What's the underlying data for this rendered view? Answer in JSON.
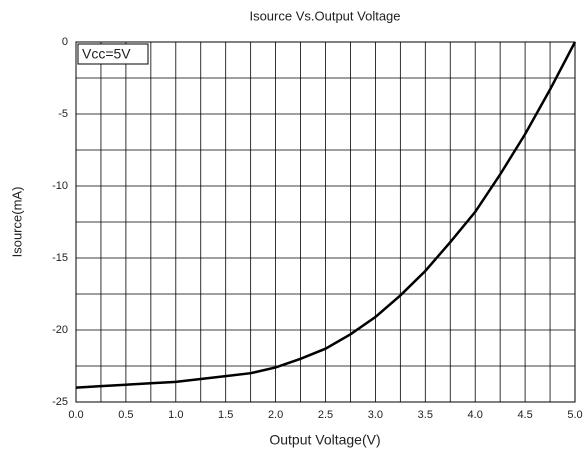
{
  "chart_data": {
    "type": "line",
    "title": "Isource Vs.Output Voltage",
    "xlabel": "Output Voltage(V)",
    "ylabel": "Isource(mA)",
    "annotation": "Vcc=5V",
    "x": [
      0,
      0.25,
      0.5,
      0.75,
      1.0,
      1.25,
      1.5,
      1.75,
      2.0,
      2.25,
      2.5,
      2.75,
      3.0,
      3.25,
      3.5,
      3.75,
      4.0,
      4.25,
      4.5,
      4.75,
      5.0
    ],
    "series": [
      {
        "color": "#000000",
        "values": [
          -24,
          -23.9,
          -23.8,
          -23.7,
          -23.6,
          -23.4,
          -23.2,
          -23.0,
          -22.6,
          -22.0,
          -21.3,
          -20.3,
          -19.1,
          -17.6,
          -15.9,
          -13.9,
          -11.8,
          -9.2,
          -6.4,
          -3.3,
          0
        ]
      }
    ],
    "xlim": [
      0,
      5
    ],
    "xticks": [
      {
        "value": 0,
        "label": "0.0"
      },
      0.5,
      {
        "value": 1,
        "label": "1.0"
      },
      1.5,
      {
        "value": 2,
        "label": "2.0"
      },
      2.5,
      {
        "value": 3,
        "label": "3.0"
      },
      3.5,
      {
        "value": 4,
        "label": "4.0"
      },
      4.5,
      {
        "value": 5,
        "label": "5.0"
      }
    ],
    "ylim": [
      -25,
      0
    ],
    "yticks": [
      0,
      -5,
      -10,
      -15,
      -20,
      -25
    ],
    "grid": true,
    "minor_grid": true
  }
}
